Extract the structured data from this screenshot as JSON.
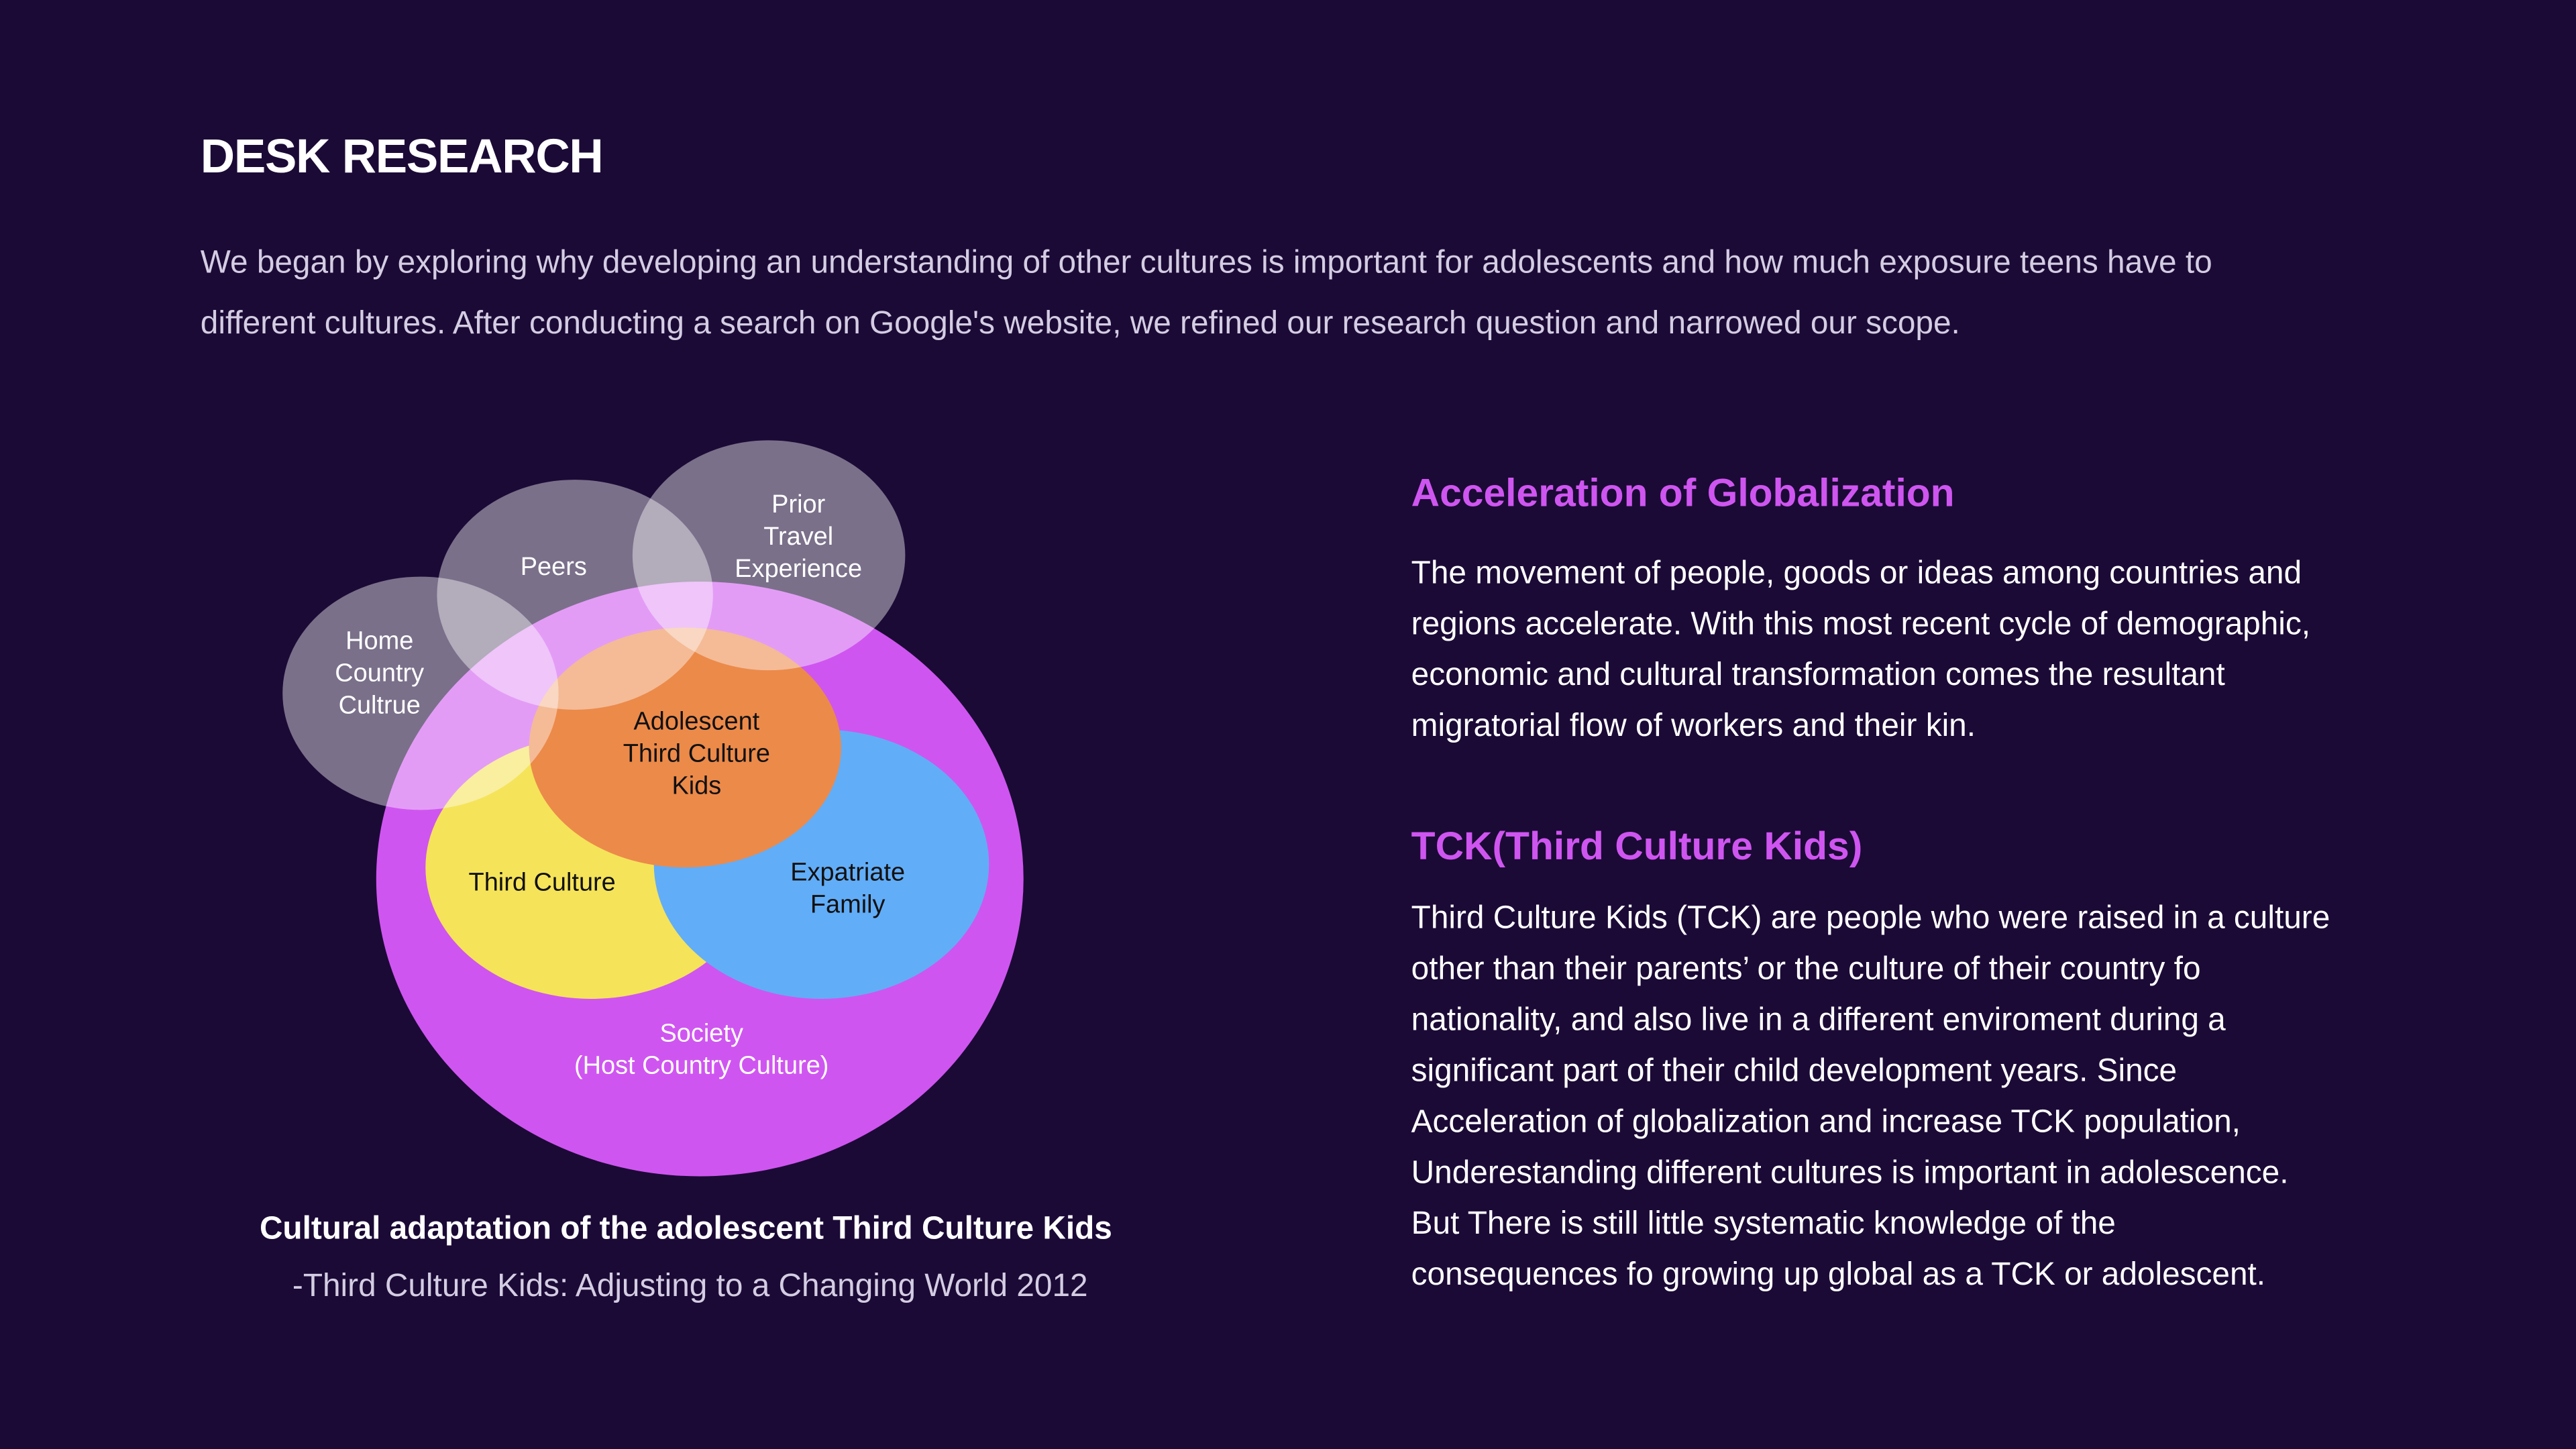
{
  "header": {
    "title": "DESK RESEARCH",
    "intro": [
      "We began by exploring why developing an understanding of other cultures is important for adolescents and how much exposure teens have to",
      "different cultures. After conducting a search on Google's website, we refined our research question and narrowed our scope."
    ]
  },
  "diagram": {
    "nodes": [
      {
        "label": [
          "Home",
          "Country",
          "Cultrue"
        ]
      },
      {
        "label": [
          "Peers"
        ]
      },
      {
        "label": [
          "Prior",
          "Travel",
          "Experience"
        ]
      },
      {
        "label": [
          "Adolescent",
          "Third Culture",
          "Kids"
        ]
      },
      {
        "label": [
          "Third Culture"
        ]
      },
      {
        "label": [
          "Expatriate",
          "Family"
        ]
      },
      {
        "label": [
          "Society",
          "(Host Country Culture)"
        ]
      }
    ],
    "caption": "Cultural adaptation of the adolescent Third Culture Kids",
    "source": "-Third Culture Kids: Adjusting to a Changing World 2012"
  },
  "sections": [
    {
      "heading": "Acceleration of Globalization",
      "body": [
        "The movement of people, goods or ideas among countries and",
        "regions accelerate. With this most recent cycle of demographic,",
        "economic and cultural transformation comes the resultant",
        "migratorial flow of workers and their kin."
      ]
    },
    {
      "heading": "TCK(Third Culture Kids)",
      "body": [
        "Third Culture Kids (TCK) are people who were raised in a culture",
        "other than their parents’ or the culture of their country fo",
        "nationality, and also live in a different enviroment during a",
        "significant part of their child development years. Since",
        "Acceleration of globalization and increase TCK population,",
        "Underestanding different cultures is important in adolescence.",
        "But There is still little systematic knowledge of the",
        "consequences fo growing up global as a TCK or adolescent."
      ]
    }
  ]
}
